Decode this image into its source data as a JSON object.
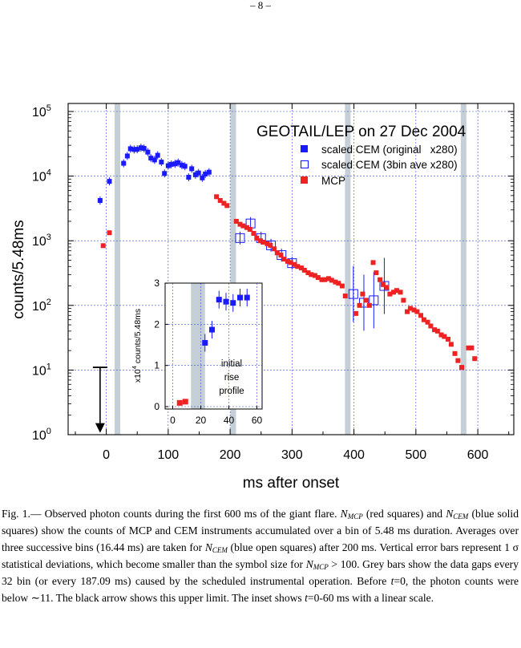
{
  "page_number": "– 8 –",
  "chart_data": [
    {
      "type": "scatter",
      "title": "GEOTAIL/LEP on 27 Dec 2004",
      "xlabel": "ms after onset",
      "ylabel": "counts/5.48ms",
      "xlim": [
        -60,
        655
      ],
      "ylim": [
        1,
        100000
      ],
      "yscale": "log",
      "x_ticks": [
        0,
        100,
        200,
        300,
        400,
        500,
        600
      ],
      "y_ticks": [
        1,
        10,
        100,
        1000,
        10000,
        100000
      ],
      "y_tick_labels": [
        {
          "base": "10",
          "exp": "0"
        },
        {
          "base": "10",
          "exp": "1"
        },
        {
          "base": "10",
          "exp": "2"
        },
        {
          "base": "10",
          "exp": "3"
        },
        {
          "base": "10",
          "exp": "4"
        },
        {
          "base": "10",
          "exp": "5"
        }
      ],
      "grid": true,
      "legend_position": "top-right",
      "colors": {
        "cem": "#1a1aff",
        "mcp": "#ee2222",
        "gap": "#c5cfd8",
        "grid": "#3a4acc"
      },
      "gap_bars_x": [
        18,
        205,
        390,
        577
      ],
      "upper_limit": {
        "x": -10,
        "y_from": 11,
        "y_to": 1.2
      },
      "series": [
        {
          "name": "scaled CEM (original   x280)",
          "marker": "filled-square",
          "x": [
            -10,
            5,
            28,
            34,
            39,
            45,
            50,
            56,
            61,
            67,
            72,
            78,
            83,
            89,
            94,
            100,
            105,
            111,
            116,
            122,
            127,
            133,
            138,
            144,
            149,
            155,
            160,
            166
          ],
          "y": [
            4200,
            8300,
            15800,
            20500,
            26500,
            25800,
            26000,
            27500,
            26800,
            23500,
            19000,
            17800,
            21000,
            16500,
            11000,
            14500,
            15200,
            15500,
            16200,
            14800,
            14200,
            9600,
            13000,
            10500,
            11200,
            9400,
            10800,
            11500
          ]
        },
        {
          "name": "scaled CEM (3bin ave x280)",
          "marker": "open-square",
          "x": [
            216,
            233,
            250,
            266,
            283,
            300,
            399,
            416,
            432,
            449
          ],
          "y": [
            1100,
            1850,
            1100,
            850,
            600,
            450,
            150,
            110,
            120,
            200
          ]
        },
        {
          "name": "MCP",
          "marker": "filled-square",
          "x": [
            -5,
            5,
            178,
            184,
            190,
            195,
            210,
            216,
            221,
            227,
            232,
            238,
            243,
            249,
            254,
            260,
            265,
            271,
            276,
            282,
            287,
            293,
            298,
            304,
            309,
            315,
            320,
            326,
            331,
            337,
            342,
            348,
            353,
            359,
            364,
            370,
            375,
            381,
            386,
            403,
            409,
            414,
            420,
            425,
            431,
            436,
            442,
            447,
            453,
            458,
            464,
            469,
            475,
            480,
            486,
            491,
            497,
            502,
            508,
            513,
            519,
            524,
            530,
            535,
            541,
            546,
            552,
            557,
            563,
            568,
            574,
            585,
            590,
            595
          ],
          "y": [
            840,
            1330,
            4800,
            4200,
            3800,
            3500,
            2000,
            1800,
            1700,
            1600,
            1500,
            1300,
            1100,
            1000,
            950,
            900,
            850,
            750,
            650,
            600,
            520,
            480,
            460,
            430,
            400,
            380,
            350,
            320,
            300,
            290,
            270,
            250,
            250,
            260,
            245,
            230,
            220,
            200,
            140,
            75,
            100,
            150,
            120,
            100,
            460,
            320,
            250,
            210,
            190,
            150,
            160,
            170,
            160,
            120,
            80,
            90,
            85,
            80,
            70,
            60,
            55,
            48,
            42,
            40,
            35,
            33,
            30,
            25,
            18,
            14,
            11,
            22,
            22,
            15
          ]
        }
      ]
    },
    {
      "type": "scatter",
      "title": "",
      "xlabel": "",
      "ylabel_base": "x10",
      "ylabel_exp": "4",
      "ylabel_tail": " counts/5.48ms",
      "annotation": [
        "initial",
        "rise",
        "profile"
      ],
      "xlim": [
        -8,
        65
      ],
      "ylim": [
        -0.1,
        3.05
      ],
      "x_ticks": [
        0,
        20,
        40,
        60
      ],
      "y_ticks": [
        0,
        1,
        2,
        3
      ],
      "grid": true,
      "gap_band_x": [
        13,
        23
      ],
      "series": [
        {
          "name": "MCP",
          "x": [
            5,
            9
          ],
          "y": [
            0.09,
            0.12
          ]
        },
        {
          "name": "scaled CEM",
          "x": [
            23,
            28,
            33,
            38,
            43,
            48,
            53
          ],
          "y": [
            1.55,
            1.87,
            2.6,
            2.55,
            2.52,
            2.65,
            2.65
          ]
        }
      ]
    }
  ],
  "caption": {
    "lead": "Fig.  1.— Observed photon counts during the first 600 ms of the giant flare. ",
    "n": "N",
    "mcp_sub": "MCP",
    "cem_sub": "CEM",
    "t1": " (red squares) and ",
    "t2": " (blue solid squares) show the counts of MCP and CEM instruments accumulated over a bin of 5.48 ms duration.  Averages over three successive bins (16.44 ms) are taken for ",
    "t3": " (blue open squares) after 200 ms. Vertical error bars represent 1 σ statistical deviations, which become smaller than the symbol size for ",
    "t4": " > 100.  Grey bars show the data gaps every 32 bin (or every 187.09 ms) caused by the scheduled instrumental operation.  Before ",
    "t5": "=0, the photon counts were below ∼11.  The black arrow shows this upper limit. The inset shows ",
    "t6": "=0-60 ms with a linear scale.",
    "t": "t"
  }
}
